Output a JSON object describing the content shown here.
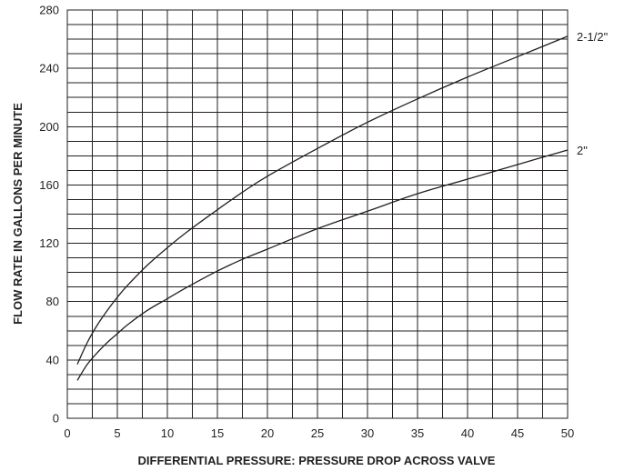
{
  "chart_data": {
    "type": "line",
    "title": "",
    "xlabel": "DIFFERENTIAL PRESSURE: PRESSURE DROP ACROSS VALVE",
    "ylabel": "FLOW RATE IN GALLONS PER MINUTE",
    "xlim": [
      0,
      50
    ],
    "ylim": [
      0,
      280
    ],
    "x_ticks": [
      "0",
      "5",
      "10",
      "15",
      "20",
      "25",
      "30",
      "35",
      "40",
      "45",
      "50"
    ],
    "y_ticks": [
      "0",
      "40",
      "80",
      "120",
      "160",
      "200",
      "240",
      "280"
    ],
    "x_minor_step": 2.5,
    "y_minor_step": 10,
    "grid": true,
    "legend": "inline at line ends (right)",
    "line_color": "#231f20",
    "grid_color": "#231f20",
    "series": [
      {
        "name": "2-1/2\"",
        "x": [
          1,
          2,
          3,
          4,
          5,
          6,
          8,
          10,
          12,
          15,
          17.5,
          20,
          25,
          30,
          35,
          40,
          45,
          50
        ],
        "values": [
          37,
          52,
          64,
          74,
          83,
          91,
          105,
          117,
          128,
          143,
          155,
          166,
          185,
          203,
          219,
          234,
          248,
          262
        ]
      },
      {
        "name": "2\"",
        "x": [
          1,
          2,
          3,
          4,
          5,
          6,
          8,
          10,
          12,
          15,
          17.5,
          20,
          25,
          30,
          35,
          40,
          45,
          50
        ],
        "values": [
          26,
          37,
          45,
          52,
          58,
          64,
          74,
          82,
          90,
          101,
          109,
          116,
          130,
          142,
          154,
          164,
          174,
          184
        ]
      }
    ]
  }
}
